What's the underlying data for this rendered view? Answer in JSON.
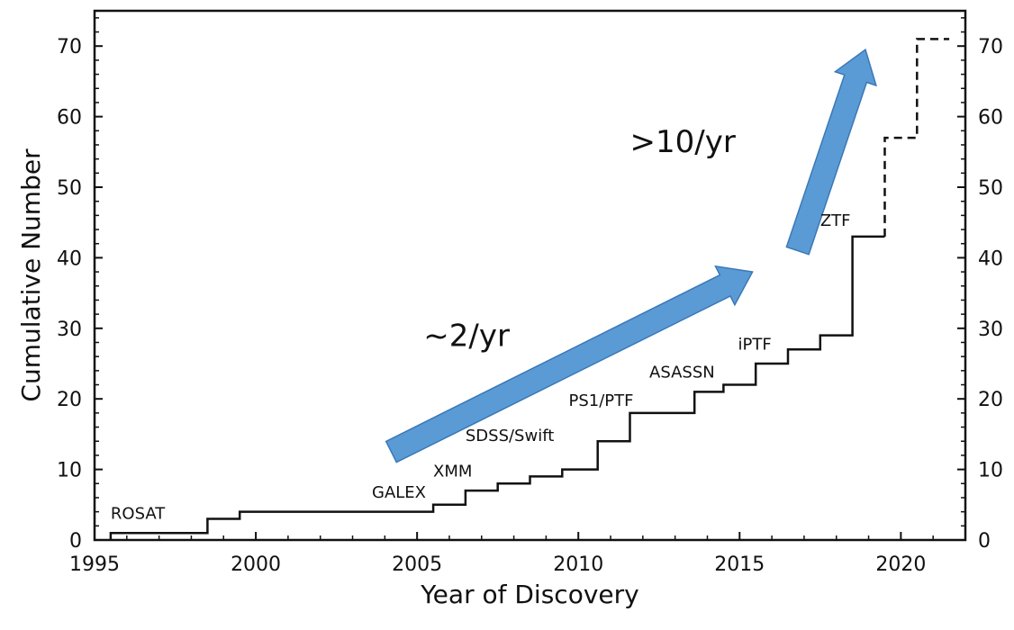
{
  "chart_data": {
    "type": "line",
    "xlabel": "Year of Discovery",
    "ylabel": "Cumulative Number",
    "xlim": [
      1995,
      2022
    ],
    "ylim": [
      0,
      75
    ],
    "x_ticks": [
      1995,
      2000,
      2005,
      2010,
      2015,
      2020
    ],
    "x_tick_labels": [
      "1995",
      "2000",
      "2005",
      "2010",
      "2015",
      "2020"
    ],
    "y_ticks": [
      0,
      10,
      20,
      30,
      40,
      50,
      60,
      70
    ],
    "y_tick_labels": [
      "0",
      "10",
      "20",
      "30",
      "40",
      "50",
      "60",
      "70"
    ],
    "right_axis_labels": true,
    "grid": false,
    "line_color": "#111111",
    "arrow_color": "#5b9bd5",
    "series": [
      {
        "style": "solid-step",
        "points": [
          [
            1995.5,
            0
          ],
          [
            1995.5,
            1
          ],
          [
            1998.5,
            1
          ],
          [
            1998.5,
            3
          ],
          [
            1999.5,
            3
          ],
          [
            1999.5,
            4
          ],
          [
            2005.5,
            4
          ],
          [
            2005.5,
            5
          ],
          [
            2006.5,
            5
          ],
          [
            2006.5,
            7
          ],
          [
            2007.5,
            7
          ],
          [
            2007.5,
            8
          ],
          [
            2008.5,
            8
          ],
          [
            2008.5,
            9
          ],
          [
            2009.5,
            9
          ],
          [
            2009.5,
            10
          ],
          [
            2010.6,
            10
          ],
          [
            2010.6,
            14
          ],
          [
            2011.6,
            14
          ],
          [
            2011.6,
            18
          ],
          [
            2013.6,
            18
          ],
          [
            2013.6,
            21
          ],
          [
            2014.5,
            21
          ],
          [
            2014.5,
            22
          ],
          [
            2015.5,
            22
          ],
          [
            2015.5,
            25
          ],
          [
            2016.5,
            25
          ],
          [
            2016.5,
            27
          ],
          [
            2017.5,
            27
          ],
          [
            2017.5,
            29
          ],
          [
            2018.5,
            29
          ],
          [
            2018.5,
            43
          ],
          [
            2019.5,
            43
          ]
        ]
      },
      {
        "style": "dashed-step",
        "points": [
          [
            2019.5,
            43
          ],
          [
            2019.5,
            57
          ],
          [
            2020.5,
            57
          ],
          [
            2020.5,
            71
          ],
          [
            2021.5,
            71
          ]
        ]
      }
    ],
    "annotations": [
      {
        "text": "ROSAT",
        "x": 1995.5,
        "y": 3.0
      },
      {
        "text": "GALEX",
        "x": 2003.6,
        "y": 6.0
      },
      {
        "text": "XMM",
        "x": 2005.5,
        "y": 9.0
      },
      {
        "text": "SDSS/Swift",
        "x": 2006.5,
        "y": 14.0
      },
      {
        "text": "PS1/PTF",
        "x": 2009.7,
        "y": 19.0
      },
      {
        "text": "ASASSN",
        "x": 2012.2,
        "y": 23.0
      },
      {
        "text": "iPTF",
        "x": 2014.95,
        "y": 27.0
      },
      {
        "text": "ZTF",
        "x": 2017.5,
        "y": 44.5
      }
    ],
    "trend_arrows": [
      {
        "label": "~2/yr",
        "from": [
          2004.2,
          12.5
        ],
        "to": [
          2015.4,
          38.0
        ],
        "label_x": 2005.2,
        "label_y": 27.5
      },
      {
        "label": ">10/yr",
        "from": [
          2016.8,
          41.0
        ],
        "to": [
          2018.9,
          69.5
        ],
        "label_x": 2011.6,
        "label_y": 55.0
      }
    ]
  }
}
